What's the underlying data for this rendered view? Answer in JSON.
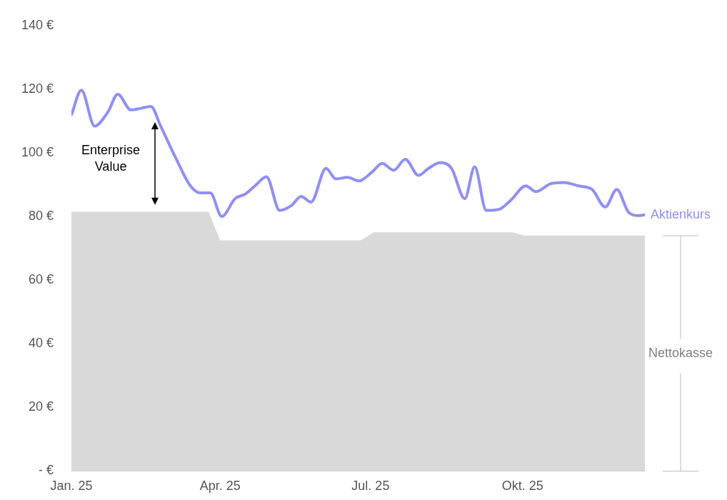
{
  "chart_data": {
    "type": "line",
    "xlim": [
      "2025-01-01",
      "2025-12-14"
    ],
    "xticks": [
      {
        "value": "2025-01-01",
        "label": "Jan. 25"
      },
      {
        "value": "2025-04-01",
        "label": "Apr. 25"
      },
      {
        "value": "2025-07-01",
        "label": "Jul. 25"
      },
      {
        "value": "2025-10-01",
        "label": "Okt. 25"
      }
    ],
    "ylim": [
      0,
      140
    ],
    "yticks": [
      {
        "value": 0,
        "label": "- €"
      },
      {
        "value": 20,
        "label": "20 €"
      },
      {
        "value": 40,
        "label": "40 €"
      },
      {
        "value": 60,
        "label": "60 €"
      },
      {
        "value": 80,
        "label": "80 €"
      },
      {
        "value": 100,
        "label": "100 €"
      },
      {
        "value": 120,
        "label": "120 €"
      },
      {
        "value": 140,
        "label": "140 €"
      }
    ],
    "grid": false,
    "legend": false,
    "series": [
      {
        "name": "Nettokasse",
        "type": "area",
        "color": "#d9d9d9",
        "x": [
          "2025-01-01",
          "2025-03-25",
          "2025-04-01",
          "2025-06-25",
          "2025-07-03",
          "2025-09-25",
          "2025-10-02",
          "2025-12-14"
        ],
        "values": [
          81.5,
          81.5,
          72.5,
          72.5,
          75,
          75,
          74,
          74
        ]
      },
      {
        "name": "Aktienkurs",
        "type": "line",
        "color": "#8f8ff5",
        "x": [
          "2025-01-01",
          "2025-01-07",
          "2025-01-15",
          "2025-01-23",
          "2025-01-29",
          "2025-02-06",
          "2025-02-12",
          "2025-02-18",
          "2025-02-24",
          "2025-03-05",
          "2025-03-14",
          "2025-03-20",
          "2025-03-26",
          "2025-04-02",
          "2025-04-10",
          "2025-04-16",
          "2025-04-22",
          "2025-04-29",
          "2025-05-07",
          "2025-05-14",
          "2025-05-20",
          "2025-05-26",
          "2025-06-04",
          "2025-06-10",
          "2025-06-17",
          "2025-06-24",
          "2025-07-02",
          "2025-07-08",
          "2025-07-15",
          "2025-07-22",
          "2025-07-30",
          "2025-08-05",
          "2025-08-12",
          "2025-08-19",
          "2025-08-27",
          "2025-09-02",
          "2025-09-09",
          "2025-09-17",
          "2025-09-24",
          "2025-10-03",
          "2025-10-09",
          "2025-10-18",
          "2025-10-26",
          "2025-11-04",
          "2025-11-12",
          "2025-11-20",
          "2025-11-27",
          "2025-12-04",
          "2025-12-10",
          "2025-12-14"
        ],
        "values": [
          112,
          119.7,
          108.4,
          112.8,
          118.4,
          113.5,
          114,
          114.6,
          108.4,
          98.5,
          89.6,
          87.4,
          87.4,
          80,
          85.6,
          87,
          89.6,
          92.5,
          81.9,
          83.4,
          86.3,
          84.5,
          95.1,
          91.8,
          92.3,
          91.2,
          94,
          96.7,
          94.5,
          98,
          92.9,
          95.1,
          96.9,
          95.1,
          85.6,
          95.6,
          81.9,
          82.3,
          85.2,
          89.6,
          87.8,
          90.3,
          90.7,
          89.6,
          88.5,
          83,
          88.5,
          81.4,
          80.3,
          80.5
        ]
      }
    ],
    "annotations": [
      "Enterprise Value"
    ]
  }
}
